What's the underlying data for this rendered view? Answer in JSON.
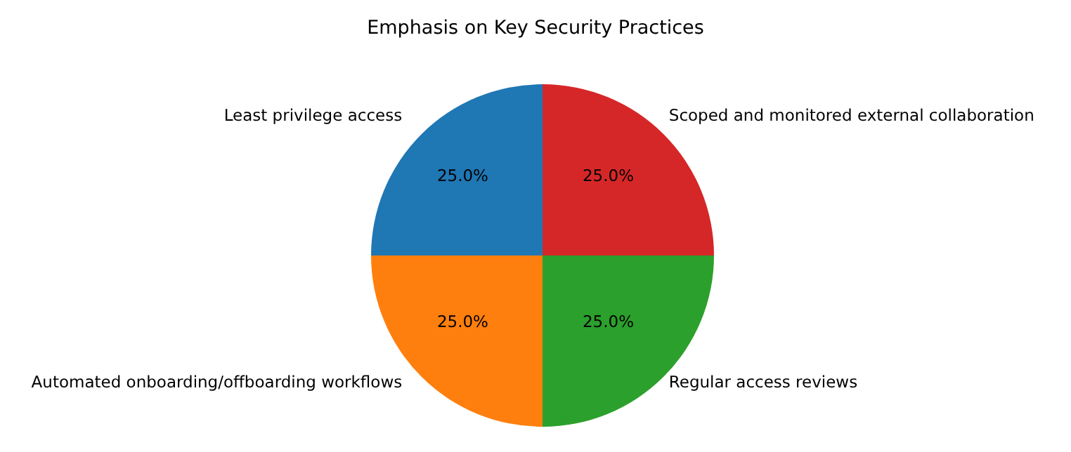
{
  "chart_data": {
    "type": "pie",
    "title": "Emphasis on Key Security Practices",
    "categories": [
      "Least privilege access",
      "Automated onboarding/offboarding workflows",
      "Regular access reviews",
      "Scoped and monitored external collaboration"
    ],
    "values": [
      25,
      25,
      25,
      25
    ],
    "colors": [
      "#1f77b4",
      "#ff7f0e",
      "#2ca02c",
      "#d62728"
    ],
    "value_labels": [
      "25.0%",
      "25.0%",
      "25.0%",
      "25.0%"
    ]
  }
}
